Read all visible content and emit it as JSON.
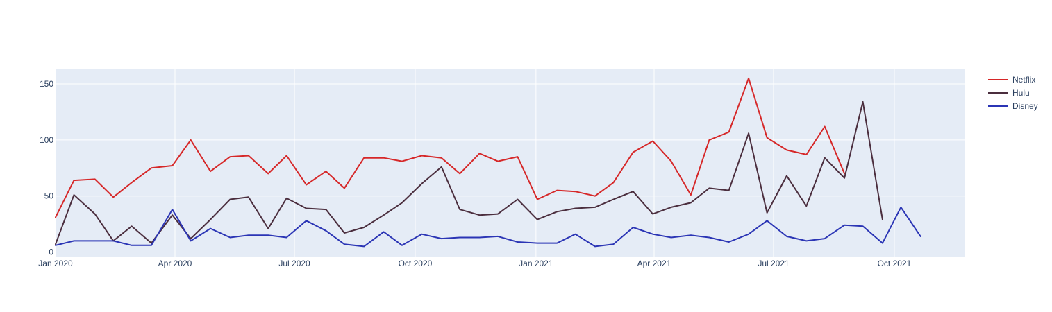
{
  "colors": {
    "plot_bg": "#e5ecf6",
    "grid": "#ffffff",
    "tick_text": "#2a3f5f"
  },
  "chart_data": {
    "type": "line",
    "title": "",
    "xlabel": "",
    "ylabel": "",
    "x_axis": {
      "type": "date",
      "range": [
        "2020-01-01",
        "2021-11-24"
      ],
      "ticks": [
        {
          "date": "2020-01-01",
          "label": "Jan 2020"
        },
        {
          "date": "2020-04-01",
          "label": "Apr 2020"
        },
        {
          "date": "2020-07-01",
          "label": "Jul 2020"
        },
        {
          "date": "2020-10-01",
          "label": "Oct 2020"
        },
        {
          "date": "2021-01-01",
          "label": "Jan 2021"
        },
        {
          "date": "2021-04-01",
          "label": "Apr 2021"
        },
        {
          "date": "2021-07-01",
          "label": "Jul 2021"
        },
        {
          "date": "2021-10-01",
          "label": "Oct 2021"
        }
      ]
    },
    "y_axis": {
      "range": [
        -4,
        163
      ],
      "ticks": [
        0,
        50,
        100,
        150
      ]
    },
    "grid": true,
    "legend_position": "top-right",
    "x": [
      "2020-01-01",
      "2020-01-15",
      "2020-01-31",
      "2020-02-14",
      "2020-02-28",
      "2020-03-14",
      "2020-03-30",
      "2020-04-13",
      "2020-04-28",
      "2020-05-13",
      "2020-05-27",
      "2020-06-11",
      "2020-06-25",
      "2020-07-10",
      "2020-07-25",
      "2020-08-08",
      "2020-08-23",
      "2020-09-07",
      "2020-09-21",
      "2020-10-06",
      "2020-10-21",
      "2020-11-04",
      "2020-11-19",
      "2020-12-03",
      "2020-12-18",
      "2021-01-02",
      "2021-01-17",
      "2021-01-31",
      "2021-02-15",
      "2021-03-01",
      "2021-03-16",
      "2021-03-31",
      "2021-04-14",
      "2021-04-29",
      "2021-05-13",
      "2021-05-28",
      "2021-06-12",
      "2021-06-26",
      "2021-07-11",
      "2021-07-26",
      "2021-08-09",
      "2021-08-24",
      "2021-09-07",
      "2021-09-22",
      "2021-10-06",
      "2021-10-21",
      "2021-11-04",
      "2021-11-19"
    ],
    "series": [
      {
        "name": "Netflix",
        "color": "#d62728",
        "values": [
          31,
          64,
          65,
          49,
          62,
          75,
          77,
          100,
          72,
          85,
          86,
          70,
          86,
          60,
          72,
          57,
          84,
          84,
          81,
          86,
          84,
          70,
          88,
          81,
          85,
          47,
          55,
          54,
          50,
          62,
          89,
          99,
          81,
          51,
          100,
          107,
          155,
          102,
          91,
          87,
          112,
          70,
          null,
          null,
          null,
          null,
          null,
          null
        ]
      },
      {
        "name": "Hulu",
        "color": "#4b2e3e",
        "values": [
          7,
          51,
          34,
          10,
          23,
          8,
          33,
          12,
          29,
          47,
          49,
          21,
          48,
          39,
          38,
          17,
          22,
          33,
          44,
          61,
          76,
          38,
          33,
          34,
          47,
          29,
          36,
          39,
          40,
          47,
          54,
          34,
          40,
          44,
          57,
          55,
          106,
          35,
          68,
          41,
          84,
          66,
          134,
          29,
          null,
          null,
          null,
          null
        ]
      },
      {
        "name": "Disney",
        "color": "#2b35b5",
        "values": [
          6,
          10,
          10,
          10,
          6,
          6,
          38,
          10,
          21,
          13,
          15,
          15,
          13,
          28,
          19,
          7,
          5,
          18,
          6,
          16,
          12,
          13,
          13,
          14,
          9,
          8,
          8,
          16,
          5,
          7,
          22,
          16,
          13,
          15,
          13,
          9,
          16,
          28,
          14,
          10,
          12,
          24,
          23,
          8,
          40,
          14,
          null,
          null
        ]
      }
    ]
  }
}
